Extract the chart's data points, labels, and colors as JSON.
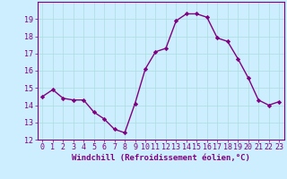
{
  "x": [
    0,
    1,
    2,
    3,
    4,
    5,
    6,
    7,
    8,
    9,
    10,
    11,
    12,
    13,
    14,
    15,
    16,
    17,
    18,
    19,
    20,
    21,
    22,
    23
  ],
  "y": [
    14.5,
    14.9,
    14.4,
    14.3,
    14.3,
    13.6,
    13.2,
    12.6,
    12.4,
    14.1,
    16.1,
    17.1,
    17.3,
    18.9,
    19.3,
    19.3,
    19.1,
    17.9,
    17.7,
    16.7,
    15.6,
    14.3,
    14.0,
    14.2
  ],
  "line_color": "#800080",
  "marker": "D",
  "marker_size": 2.2,
  "bg_color": "#cceeff",
  "grid_color": "#aadddd",
  "xlabel": "Windchill (Refroidissement éolien,°C)",
  "xlabel_fontsize": 6.5,
  "tick_color": "#800080",
  "ylim": [
    12,
    20
  ],
  "xlim": [
    -0.5,
    23.5
  ],
  "yticks": [
    12,
    13,
    14,
    15,
    16,
    17,
    18,
    19
  ],
  "xticks": [
    0,
    1,
    2,
    3,
    4,
    5,
    6,
    7,
    8,
    9,
    10,
    11,
    12,
    13,
    14,
    15,
    16,
    17,
    18,
    19,
    20,
    21,
    22,
    23
  ],
  "tick_fontsize": 6.0,
  "spine_color": "#800080",
  "line_width": 1.0
}
